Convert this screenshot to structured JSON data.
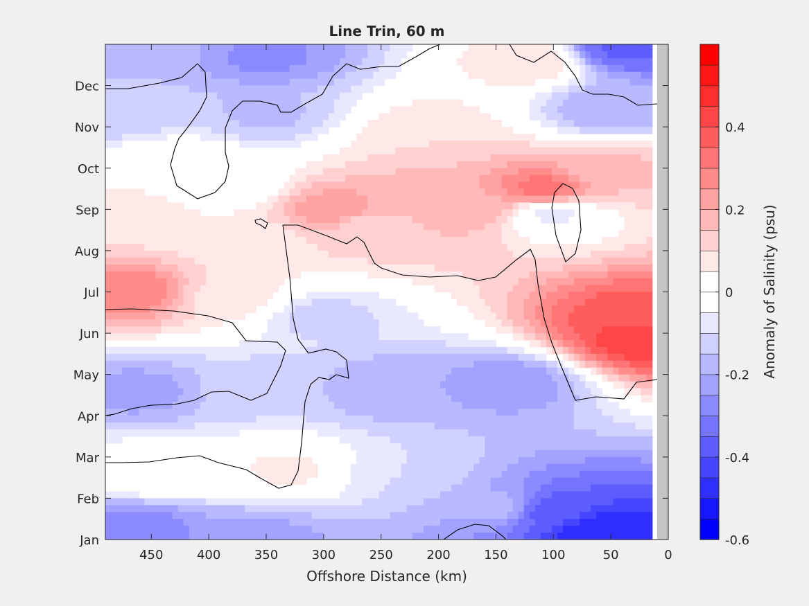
{
  "chart_data": {
    "type": "heatmap",
    "subtype": "filled-contour",
    "title": "Line Trin, 60 m",
    "xlabel": "Offshore Distance (km)",
    "ylabel": "",
    "x_direction": "reversed",
    "xlim": [
      0,
      490
    ],
    "xticks": [
      450,
      400,
      350,
      300,
      250,
      200,
      150,
      100,
      50,
      0
    ],
    "xtick_labels": [
      "450",
      "400",
      "350",
      "300",
      "250",
      "200",
      "150",
      "100",
      "50",
      "0"
    ],
    "ylim_month_index": [
      1,
      13
    ],
    "yticks": [
      1,
      2,
      3,
      4,
      5,
      6,
      7,
      8,
      9,
      10,
      11,
      12
    ],
    "ytick_labels": [
      "Jan",
      "Feb",
      "Mar",
      "Apr",
      "May",
      "Jun",
      "Jul",
      "Aug",
      "Sep",
      "Oct",
      "Nov",
      "Dec"
    ],
    "grid": false,
    "zero_contour_line": true,
    "colorbar": {
      "label": "Anomaly of Salinity (psu)",
      "range": [
        -0.6,
        0.6
      ],
      "step": 0.05,
      "tick_values": [
        -0.6,
        -0.4,
        -0.2,
        0,
        0.2,
        0.4
      ],
      "tick_labels": [
        "-0.6",
        "-0.4",
        "-0.2",
        "0",
        "0.2",
        "0.4"
      ],
      "min_color": "#0000ff",
      "zero_color": "#ffffff",
      "max_color": "#ff0000"
    },
    "nodata_color": "#c4c4c4",
    "features": [
      {
        "month": 1.3,
        "km": 460,
        "value": -0.28
      },
      {
        "month": 1.05,
        "km": 360,
        "value": -0.22
      },
      {
        "month": 1.2,
        "km": 60,
        "value": -0.5
      },
      {
        "month": 1.7,
        "km": 100,
        "value": -0.38
      },
      {
        "month": 2.6,
        "km": 440,
        "value": 0.04
      },
      {
        "month": 2.7,
        "km": 330,
        "value": 0.06
      },
      {
        "month": 1.8,
        "km": 150,
        "value": -0.18
      },
      {
        "month": 2.6,
        "km": 230,
        "value": -0.1
      },
      {
        "month": 4.6,
        "km": 460,
        "value": -0.22
      },
      {
        "month": 4.7,
        "km": 240,
        "value": -0.2
      },
      {
        "month": 4.8,
        "km": 140,
        "value": -0.24
      },
      {
        "month": 4.7,
        "km": 360,
        "value": -0.12
      },
      {
        "month": 6.4,
        "km": 300,
        "value": -0.12
      },
      {
        "month": 5.9,
        "km": 20,
        "value": 0.45
      },
      {
        "month": 6.4,
        "km": 30,
        "value": 0.38
      },
      {
        "month": 7.0,
        "km": 470,
        "value": 0.3
      },
      {
        "month": 6.9,
        "km": 380,
        "value": 0.08
      },
      {
        "month": 8.2,
        "km": 360,
        "value": 0.06
      },
      {
        "month": 8.8,
        "km": 460,
        "value": 0.08
      },
      {
        "month": 8.6,
        "km": 260,
        "value": 0.12
      },
      {
        "month": 8.9,
        "km": 100,
        "value": -0.06
      },
      {
        "month": 9.0,
        "km": 290,
        "value": 0.24
      },
      {
        "month": 9.1,
        "km": 170,
        "value": 0.2
      },
      {
        "month": 9.5,
        "km": 110,
        "value": 0.32
      },
      {
        "month": 10.0,
        "km": 50,
        "value": 0.16
      },
      {
        "month": 9.3,
        "km": 210,
        "value": 0.18
      },
      {
        "month": 9.6,
        "km": 385,
        "value": -0.03
      },
      {
        "month": 10.0,
        "km": 430,
        "value": 0.05
      },
      {
        "month": 10.8,
        "km": 210,
        "value": 0.1
      },
      {
        "month": 11.3,
        "km": 480,
        "value": -0.14
      },
      {
        "month": 11.3,
        "km": 350,
        "value": -0.16
      },
      {
        "month": 11.4,
        "km": 50,
        "value": -0.2
      },
      {
        "month": 12.9,
        "km": 40,
        "value": -0.36
      },
      {
        "month": 12.8,
        "km": 470,
        "value": -0.16
      },
      {
        "month": 12.7,
        "km": 350,
        "value": -0.26
      },
      {
        "month": 12.6,
        "km": 120,
        "value": 0.1
      }
    ]
  }
}
